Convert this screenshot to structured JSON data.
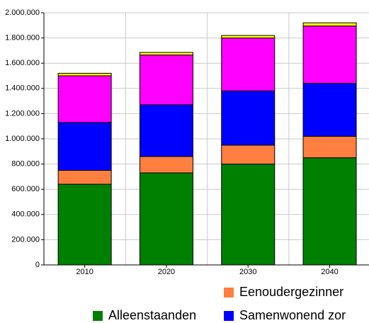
{
  "chart_data": {
    "type": "stacked_bar",
    "categories": [
      "2010",
      "2020",
      "2030",
      "2040"
    ],
    "series": [
      {
        "name": "Alleenstaanden",
        "color": "#008000",
        "values": [
          640000,
          730000,
          800000,
          850000
        ]
      },
      {
        "name": "Eenoudergezinner",
        "color": "#ff7f40",
        "values": [
          110000,
          130000,
          150000,
          170000
        ]
      },
      {
        "name": "Samenwonend zor",
        "color": "#0000ff",
        "values": [
          380000,
          410000,
          430000,
          420000
        ]
      },
      {
        "color": "#ff00ff",
        "values": [
          370000,
          395000,
          420000,
          455000
        ]
      },
      {
        "color": "#ffff00",
        "values": [
          20000,
          20000,
          20000,
          25000
        ]
      }
    ],
    "ylim": [
      0,
      2000000
    ],
    "yticks": [
      0,
      {
        "value": 200000,
        "label": "200.000"
      },
      {
        "value": 400000,
        "label": "400.000"
      },
      {
        "value": 600000,
        "label": "600.000"
      },
      {
        "value": 800000,
        "label": "800.000"
      },
      {
        "value": 1000000,
        "label": "1.000.000"
      },
      {
        "value": 1200000,
        "label": "1.200.000"
      },
      {
        "value": 1400000,
        "label": "1.400.000"
      },
      {
        "value": 1600000,
        "label": "1.600.000"
      },
      {
        "value": 1800000,
        "label": "1.800.000"
      },
      {
        "value": 2000000,
        "label": "2.000.000"
      }
    ],
    "grid": true
  }
}
